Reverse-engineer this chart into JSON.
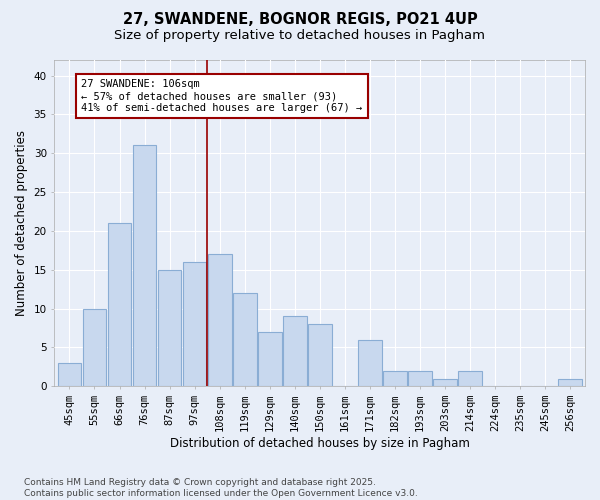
{
  "title1": "27, SWANDENE, BOGNOR REGIS, PO21 4UP",
  "title2": "Size of property relative to detached houses in Pagham",
  "xlabel": "Distribution of detached houses by size in Pagham",
  "ylabel": "Number of detached properties",
  "categories": [
    "45sqm",
    "55sqm",
    "66sqm",
    "76sqm",
    "87sqm",
    "97sqm",
    "108sqm",
    "119sqm",
    "129sqm",
    "140sqm",
    "150sqm",
    "161sqm",
    "171sqm",
    "182sqm",
    "193sqm",
    "203sqm",
    "214sqm",
    "224sqm",
    "235sqm",
    "245sqm",
    "256sqm"
  ],
  "values": [
    3,
    10,
    21,
    31,
    15,
    16,
    17,
    12,
    7,
    9,
    8,
    0,
    6,
    2,
    2,
    1,
    2,
    0,
    0,
    0,
    1
  ],
  "bar_color": "#c8d8ee",
  "bar_edge_color": "#8aadd4",
  "background_color": "#e8eef8",
  "fig_background_color": "#e8eef8",
  "grid_color": "#ffffff",
  "vline_index": 6,
  "vline_color": "#990000",
  "annotation_line1": "27 SWANDENE: 106sqm",
  "annotation_line2": "← 57% of detached houses are smaller (93)",
  "annotation_line3": "41% of semi-detached houses are larger (67) →",
  "annotation_box_edge_color": "#990000",
  "ylim": [
    0,
    42
  ],
  "yticks": [
    0,
    5,
    10,
    15,
    20,
    25,
    30,
    35,
    40
  ],
  "footer_text": "Contains HM Land Registry data © Crown copyright and database right 2025.\nContains public sector information licensed under the Open Government Licence v3.0.",
  "title_fontsize": 10.5,
  "subtitle_fontsize": 9.5,
  "axis_label_fontsize": 8.5,
  "tick_fontsize": 7.5,
  "annotation_fontsize": 7.5,
  "footer_fontsize": 6.5
}
